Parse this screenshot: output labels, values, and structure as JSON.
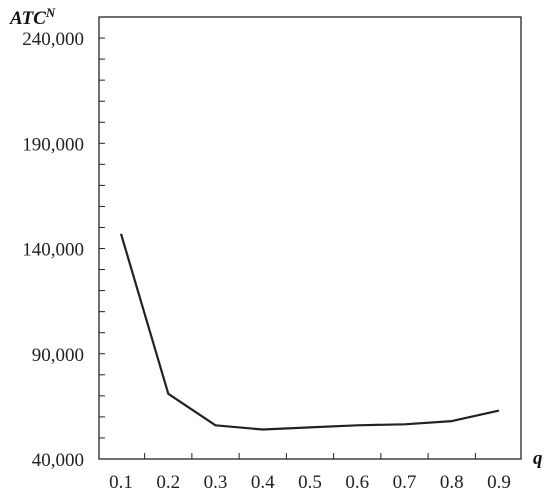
{
  "chart_data": {
    "type": "line",
    "ylabel_main": "ATC",
    "ylabel_sup": "N",
    "xlabel": "q",
    "x": [
      0.1,
      0.2,
      0.3,
      0.4,
      0.5,
      0.6,
      0.7,
      0.8,
      0.9
    ],
    "x_tick_labels": [
      "0.1",
      "0.2",
      "0.3",
      "0.4",
      "0.5",
      "0.6",
      "0.7",
      "0.8",
      "0.9"
    ],
    "y_ticks": [
      40000,
      90000,
      140000,
      190000,
      240000
    ],
    "y_tick_labels": [
      "40,000",
      "90,000",
      "140,000",
      "190,000",
      "240,000"
    ],
    "ylim": [
      40000,
      250000
    ],
    "grid": false,
    "series": [
      {
        "values": [
          147000,
          71000,
          56000,
          54000,
          55000,
          56000,
          56500,
          58000,
          63000
        ],
        "color": "#222222"
      }
    ]
  }
}
